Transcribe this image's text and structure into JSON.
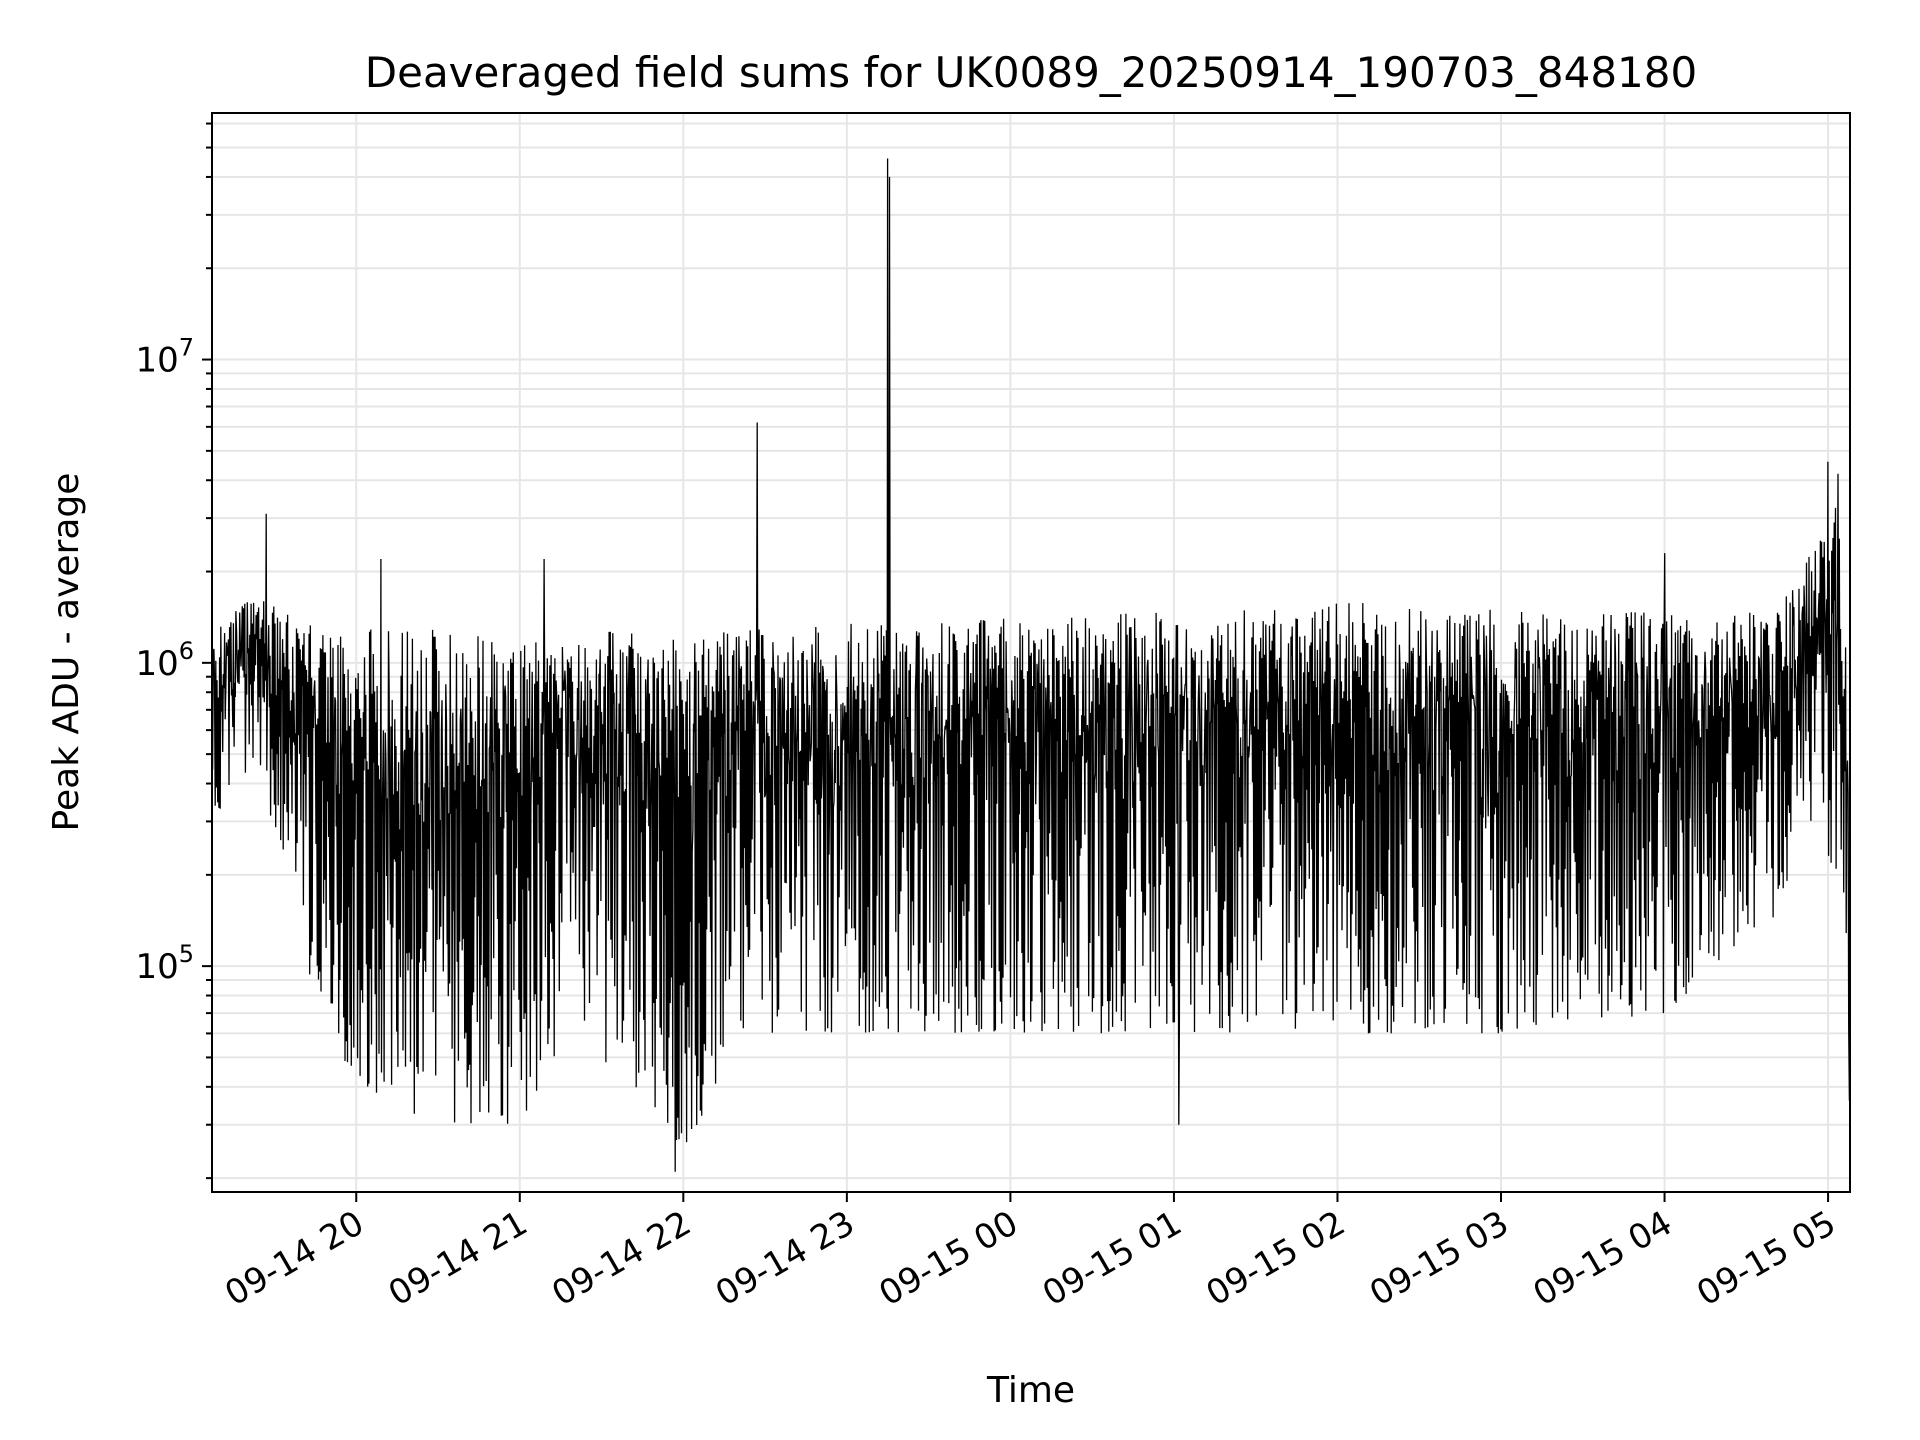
{
  "chart_data": {
    "type": "line",
    "title": "Deaveraged field sums for UK0089_20250914_190703_848180",
    "xlabel": "Time",
    "ylabel": "Peak ADU - average",
    "yscale": "log",
    "ylim": [
      18000,
      65000000
    ],
    "xlim": [
      "2025-09-14T19:07:00",
      "2025-09-15T05:08:00"
    ],
    "grid": true,
    "line_color": "#000000",
    "grid_color": "#e6e6e6",
    "x_ticks": [
      {
        "label": "09-14 20",
        "hours": 20
      },
      {
        "label": "09-14 21",
        "hours": 21
      },
      {
        "label": "09-14 22",
        "hours": 22
      },
      {
        "label": "09-14 23",
        "hours": 23
      },
      {
        "label": "09-15 00",
        "hours": 24
      },
      {
        "label": "09-15 01",
        "hours": 25
      },
      {
        "label": "09-15 02",
        "hours": 26
      },
      {
        "label": "09-15 03",
        "hours": 27
      },
      {
        "label": "09-15 04",
        "hours": 28
      },
      {
        "label": "09-15 05",
        "hours": 29
      }
    ],
    "y_ticks": [
      {
        "value": 100000,
        "base": "10",
        "exp": "5"
      },
      {
        "value": 1000000,
        "base": "10",
        "exp": "6"
      },
      {
        "value": 10000000,
        "base": "10",
        "exp": "7"
      }
    ],
    "x_start_hours": 19.118,
    "x_end_hours": 29.134,
    "anchors": [
      {
        "hours": 19.12,
        "upper": 1300000,
        "lower": 300000
      },
      {
        "hours": 19.4,
        "upper": 1700000,
        "lower": 500000
      },
      {
        "hours": 19.55,
        "upper": 1500000,
        "lower": 200000
      },
      {
        "hours": 19.75,
        "upper": 1300000,
        "lower": 80000
      },
      {
        "hours": 20.0,
        "upper": 1300000,
        "lower": 40000
      },
      {
        "hours": 20.5,
        "upper": 1300000,
        "lower": 30000
      },
      {
        "hours": 21.0,
        "upper": 1200000,
        "lower": 30000
      },
      {
        "hours": 21.3,
        "upper": 1300000,
        "lower": 60000
      },
      {
        "hours": 21.7,
        "upper": 1300000,
        "lower": 40000
      },
      {
        "hours": 22.0,
        "upper": 1200000,
        "lower": 25000
      },
      {
        "hours": 22.4,
        "upper": 1300000,
        "lower": 60000
      },
      {
        "hours": 23.0,
        "upper": 1350000,
        "lower": 60000
      },
      {
        "hours": 24.0,
        "upper": 1400000,
        "lower": 60000
      },
      {
        "hours": 25.0,
        "upper": 1500000,
        "lower": 60000
      },
      {
        "hours": 26.0,
        "upper": 1600000,
        "lower": 60000
      },
      {
        "hours": 27.0,
        "upper": 1500000,
        "lower": 60000
      },
      {
        "hours": 28.0,
        "upper": 1500000,
        "lower": 70000
      },
      {
        "hours": 28.7,
        "upper": 1500000,
        "lower": 150000
      },
      {
        "hours": 28.9,
        "upper": 2500000,
        "lower": 300000
      },
      {
        "hours": 29.05,
        "upper": 3500000,
        "lower": 200000
      },
      {
        "hours": 29.134,
        "upper": 1000000,
        "lower": 40000
      }
    ],
    "spikes": [
      {
        "hours": 19.45,
        "value": 3100000
      },
      {
        "hours": 20.15,
        "value": 2200000
      },
      {
        "hours": 21.15,
        "value": 2200000
      },
      {
        "hours": 21.95,
        "value": 21000
      },
      {
        "hours": 22.45,
        "value": 6200000
      },
      {
        "hours": 23.25,
        "value": 46000000
      },
      {
        "hours": 23.26,
        "value": 40000000
      },
      {
        "hours": 25.03,
        "value": 30000
      },
      {
        "hours": 28.0,
        "value": 2300000
      },
      {
        "hours": 29.0,
        "value": 4600000
      },
      {
        "hours": 29.06,
        "value": 4200000
      },
      {
        "hours": 29.13,
        "value": 36000
      }
    ]
  }
}
